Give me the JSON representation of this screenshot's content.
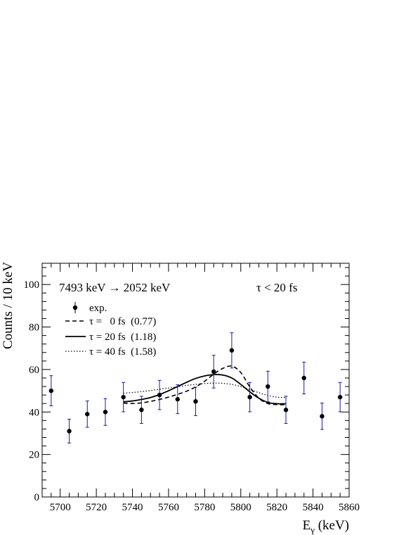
{
  "chart_data": {
    "type": "scatter",
    "title": "",
    "xlabel": "E",
    "xlabel_sub": "γ",
    "xlabel_unit": " (keV)",
    "ylabel": "Counts / 10 keV",
    "xlim": [
      5690,
      5860
    ],
    "ylim": [
      0,
      110
    ],
    "x_ticks": [
      5700,
      5720,
      5740,
      5760,
      5780,
      5800,
      5820,
      5840,
      5860
    ],
    "y_ticks": [
      0,
      20,
      40,
      60,
      80,
      100
    ],
    "grid": false,
    "legend_position": "top-left",
    "annotations": {
      "transition": "7493 keV → 2052 keV",
      "limit": "τ < 20 fs"
    },
    "points": {
      "name": "exp.",
      "error_bar_color": "#1a1aa8",
      "x": [
        5695,
        5705,
        5715,
        5725,
        5735,
        5745,
        5755,
        5765,
        5775,
        5785,
        5795,
        5805,
        5815,
        5825,
        5835,
        5845,
        5855
      ],
      "y": [
        50,
        31,
        39,
        40,
        47,
        41,
        48,
        46,
        45,
        59,
        69,
        47,
        52,
        41,
        56,
        38,
        47
      ],
      "yerr": [
        7.1,
        5.6,
        6.2,
        6.3,
        6.9,
        6.4,
        6.9,
        6.8,
        6.7,
        7.7,
        8.3,
        6.9,
        7.2,
        6.4,
        7.5,
        6.2,
        6.9
      ]
    },
    "series": [
      {
        "name": "τ =   0 fs  (0.77)",
        "dash": "6,4",
        "x": [
          5735,
          5740,
          5745,
          5750,
          5755,
          5760,
          5765,
          5770,
          5775,
          5780,
          5785,
          5790,
          5795,
          5800,
          5805,
          5810,
          5815,
          5820,
          5825
        ],
        "y": [
          44.2,
          44.0,
          44.3,
          45.0,
          45.9,
          47.0,
          48.3,
          49.8,
          51.8,
          54.5,
          57.8,
          60.5,
          61.6,
          58.6,
          51.8,
          46.5,
          44.0,
          43.5,
          43.4
        ]
      },
      {
        "name": "τ = 20 fs  (1.18)",
        "dash": "",
        "x": [
          5735,
          5740,
          5745,
          5750,
          5755,
          5760,
          5765,
          5770,
          5775,
          5780,
          5785,
          5790,
          5795,
          5800,
          5805,
          5810,
          5815,
          5820,
          5825
        ],
        "y": [
          44.8,
          45.2,
          45.9,
          46.8,
          48.2,
          50.0,
          52.0,
          54.0,
          55.8,
          57.0,
          57.6,
          57.4,
          56.0,
          53.0,
          49.5,
          46.5,
          44.5,
          43.9,
          43.9
        ]
      },
      {
        "name": "τ = 40 fs  (1.58)",
        "dash": "1.5,2.5",
        "x": [
          5735,
          5740,
          5745,
          5750,
          5755,
          5760,
          5765,
          5770,
          5775,
          5780,
          5785,
          5790,
          5795,
          5800,
          5805,
          5810,
          5815,
          5820,
          5825
        ],
        "y": [
          48.8,
          49.2,
          49.6,
          50.1,
          50.7,
          51.3,
          51.9,
          52.5,
          53.0,
          53.4,
          53.6,
          53.5,
          53.0,
          52.0,
          50.6,
          49.1,
          47.8,
          47.0,
          46.8
        ]
      }
    ]
  }
}
